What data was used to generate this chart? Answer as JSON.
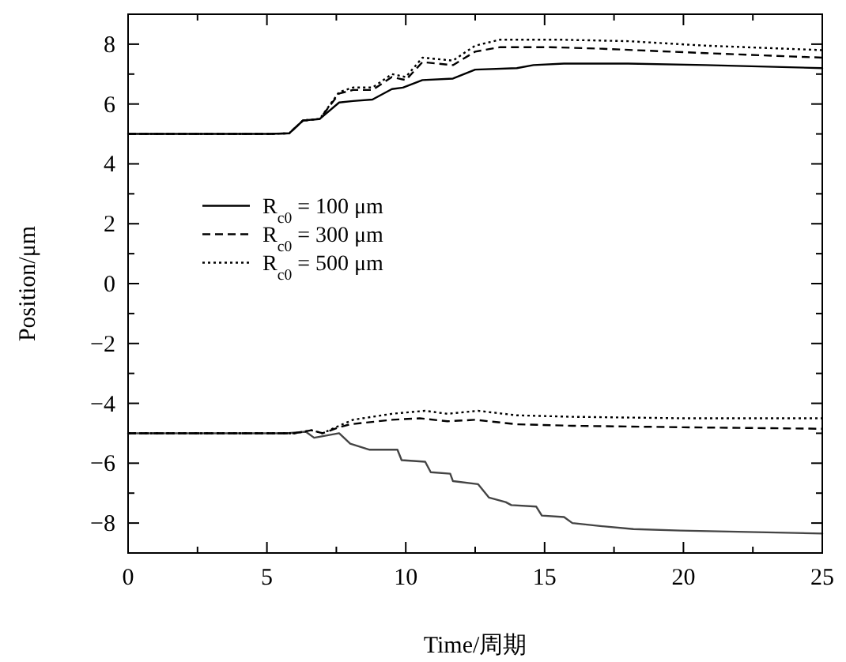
{
  "chart_data": {
    "type": "line",
    "xlabel": "Time/周期",
    "ylabel": "Position/μm",
    "xlim": [
      0,
      25
    ],
    "ylim": [
      -9,
      9
    ],
    "xticks": [
      0,
      {
        "value": 2.5,
        "label": null
      },
      5,
      {
        "value": 7.5,
        "label": null
      },
      10,
      {
        "value": 12.5,
        "label": null
      },
      15,
      {
        "value": 17.5,
        "label": null
      },
      20,
      {
        "value": 22.5,
        "label": null
      },
      25
    ],
    "yticks": [
      {
        "value": -8,
        "label": "−8"
      },
      {
        "value": -7,
        "label": null
      },
      {
        "value": -6,
        "label": "−6"
      },
      {
        "value": -5,
        "label": null
      },
      {
        "value": -4,
        "label": "−4"
      },
      {
        "value": -3,
        "label": null
      },
      {
        "value": -2,
        "label": "−2"
      },
      {
        "value": -1,
        "label": null
      },
      0,
      {
        "value": 1,
        "label": null
      },
      2,
      {
        "value": 3,
        "label": null
      },
      4,
      {
        "value": 5,
        "label": null
      },
      6,
      {
        "value": 7,
        "label": null
      },
      8
    ],
    "grid": false,
    "legend": "left",
    "marker": "none",
    "series": [
      {
        "name": "R$_{c0}$ = 100 μm",
        "color": "#000000",
        "line_style": "solid",
        "x": [
          0,
          5.1,
          5.8,
          6.3,
          6.9,
          7.6,
          8.1,
          8.8,
          9.5,
          9.9,
          10.6,
          11.7,
          12.5,
          14,
          14.6,
          15.7,
          18,
          20.8,
          25
        ],
        "values": [
          5,
          5,
          5.02,
          5.45,
          5.5,
          6.05,
          6.1,
          6.15,
          6.5,
          6.55,
          6.8,
          6.85,
          7.15,
          7.2,
          7.3,
          7.35,
          7.35,
          7.3,
          7.2
        ]
      },
      {
        "name": "R$_{c0}$ = 300 μm",
        "color": "#000000",
        "line_style": "dashed",
        "x": [
          0,
          5.1,
          5.8,
          6.3,
          6.9,
          7.6,
          8.1,
          8.8,
          9.5,
          10,
          10.6,
          11.7,
          12.5,
          13.4,
          15.2,
          17,
          20.8,
          25
        ],
        "values": [
          5,
          5,
          5.02,
          5.45,
          5.5,
          6.35,
          6.47,
          6.47,
          6.9,
          6.8,
          7.4,
          7.3,
          7.75,
          7.9,
          7.9,
          7.85,
          7.7,
          7.55
        ]
      },
      {
        "name": "R$_{c0}$ = 500 μm",
        "color": "#000000",
        "line_style": "dotted",
        "x": [
          0,
          5.1,
          5.8,
          6.3,
          6.9,
          7.6,
          8.1,
          8.8,
          9.5,
          10,
          10.6,
          11.7,
          12.5,
          13.4,
          15.5,
          18,
          20.8,
          25
        ],
        "values": [
          5,
          5,
          5.02,
          5.45,
          5.5,
          6.4,
          6.55,
          6.55,
          7.0,
          6.9,
          7.55,
          7.45,
          7.95,
          8.15,
          8.15,
          8.1,
          7.95,
          7.8
        ]
      },
      {
        "color": "#444444",
        "line_style": "solid",
        "x": [
          0,
          5.7,
          6.4,
          6.7,
          7.6,
          8,
          8.7,
          9.7,
          9.85,
          10.7,
          10.9,
          11.6,
          11.7,
          12.6,
          13,
          13.6,
          13.8,
          14.7,
          14.9,
          15.7,
          16,
          17,
          18.2,
          19.9,
          25
        ],
        "values": [
          -5,
          -5,
          -4.95,
          -5.15,
          -5.0,
          -5.35,
          -5.55,
          -5.55,
          -5.9,
          -5.95,
          -6.3,
          -6.35,
          -6.6,
          -6.7,
          -7.15,
          -7.3,
          -7.4,
          -7.45,
          -7.75,
          -7.8,
          -8.0,
          -8.1,
          -8.2,
          -8.25,
          -8.35
        ]
      },
      {
        "color": "#000000",
        "line_style": "dashed",
        "x": [
          0,
          6.0,
          6.6,
          7.0,
          7.6,
          8,
          9.5,
          10.5,
          11.5,
          12.5,
          14,
          16,
          20,
          25
        ],
        "values": [
          -5,
          -5,
          -4.9,
          -5.0,
          -4.8,
          -4.7,
          -4.55,
          -4.5,
          -4.6,
          -4.55,
          -4.7,
          -4.75,
          -4.8,
          -4.85
        ]
      },
      {
        "color": "#000000",
        "line_style": "dotted",
        "x": [
          0,
          6.0,
          6.6,
          7.0,
          7.6,
          8.1,
          9.5,
          10.7,
          11.5,
          12.6,
          14,
          16,
          20,
          25
        ],
        "values": [
          -5,
          -5,
          -4.9,
          -5.0,
          -4.75,
          -4.55,
          -4.35,
          -4.25,
          -4.35,
          -4.25,
          -4.4,
          -4.45,
          -4.5,
          -4.5
        ]
      }
    ]
  }
}
